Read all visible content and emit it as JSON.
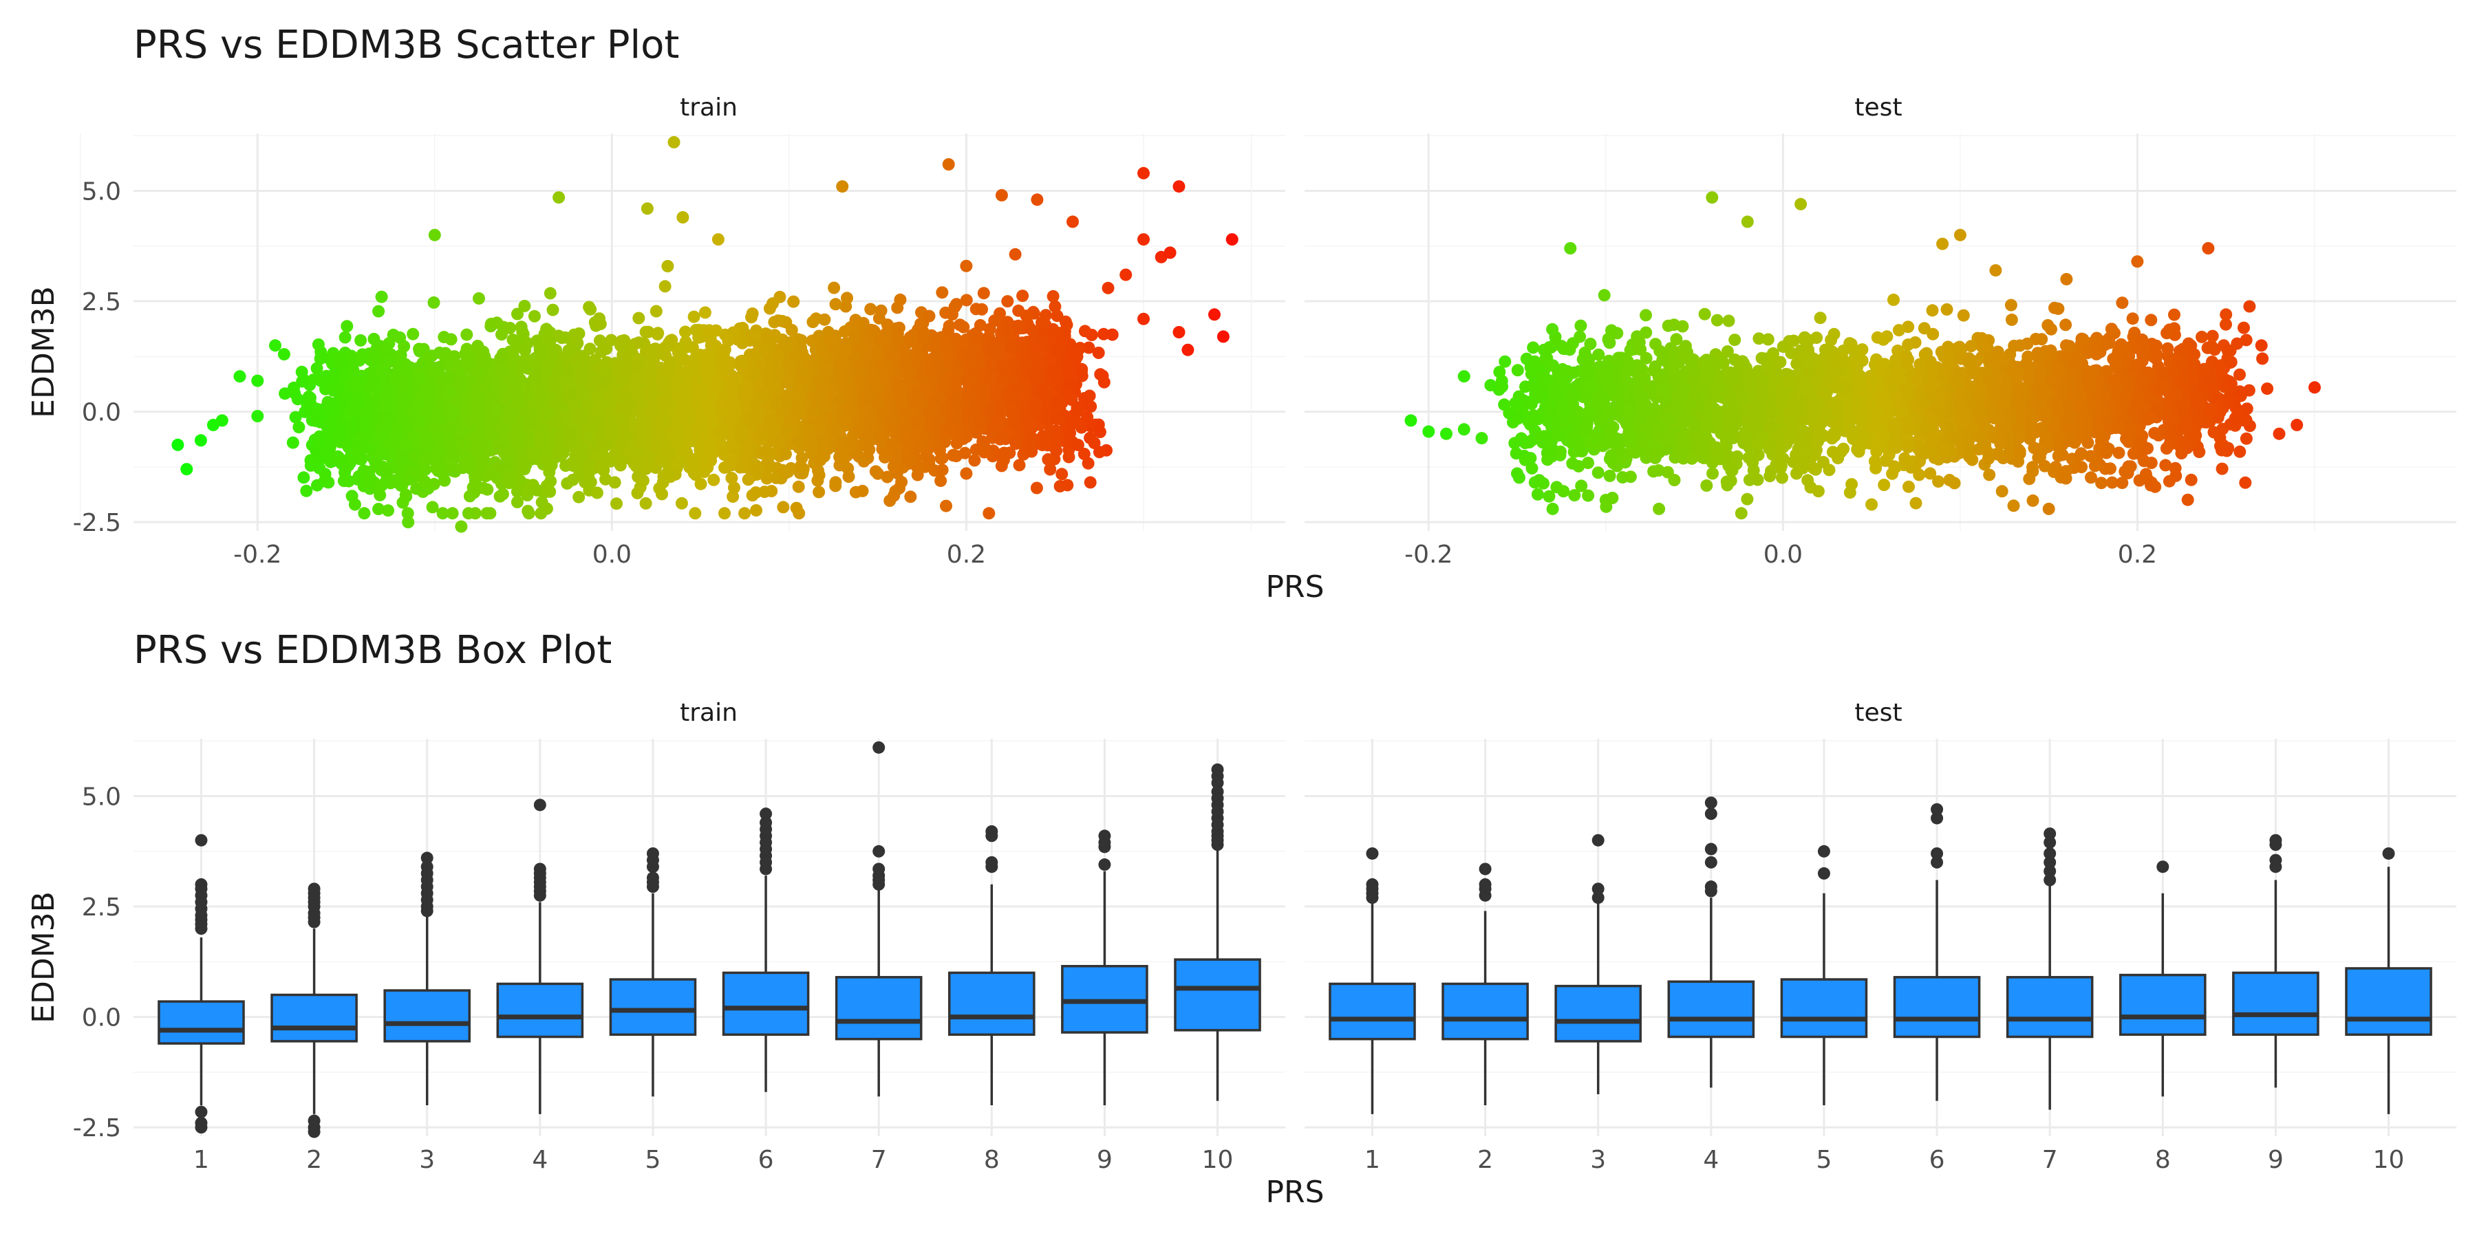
{
  "chart_data": [
    {
      "type": "scatter",
      "title": "PRS vs EDDM3B Scatter Plot",
      "xlabel": "PRS",
      "ylabel": "EDDM3B",
      "facets": [
        "train",
        "test"
      ],
      "xlim": [
        -0.27,
        0.38
      ],
      "ylim": [
        -2.7,
        6.3
      ],
      "x_ticks": [
        -0.2,
        0.0,
        0.2
      ],
      "x_tick_labels": [
        "-0.2",
        "0.0",
        "0.2"
      ],
      "y_ticks": [
        -2.5,
        0.0,
        2.5,
        5.0
      ],
      "y_tick_labels": [
        "-2.5",
        "0.0",
        "2.5",
        "5.0"
      ],
      "color_low": "#00ff00",
      "color_mid": "#c8b400",
      "color_high": "#ff0000",
      "grid": true,
      "series": [
        {
          "facet": "train",
          "x_range": [
            -0.25,
            0.35
          ],
          "bulk": {
            "x_range": [
              -0.16,
              0.26
            ],
            "y_mean_at_x0": 0.1,
            "y_slope": 1.8,
            "y_sd": 0.8
          },
          "outliers": [
            [
              -0.245,
              -0.75
            ],
            [
              -0.24,
              -1.3
            ],
            [
              -0.232,
              -0.65
            ],
            [
              -0.225,
              -0.3
            ],
            [
              -0.22,
              -0.2
            ],
            [
              -0.21,
              0.8
            ],
            [
              -0.2,
              0.7
            ],
            [
              -0.2,
              -0.1
            ],
            [
              -0.19,
              1.5
            ],
            [
              -0.185,
              1.3
            ],
            [
              -0.18,
              -0.7
            ],
            [
              -0.175,
              0.9
            ],
            [
              -0.17,
              -1.1
            ],
            [
              -0.16,
              -1.6
            ],
            [
              -0.145,
              -2.1
            ],
            [
              -0.13,
              2.6
            ],
            [
              -0.115,
              -2.5
            ],
            [
              -0.09,
              -2.3
            ],
            [
              -0.085,
              -2.6
            ],
            [
              -0.1,
              4.0
            ],
            [
              -0.03,
              4.85
            ],
            [
              -0.04,
              -2.3
            ],
            [
              0.02,
              4.6
            ],
            [
              0.035,
              6.1
            ],
            [
              0.04,
              4.4
            ],
            [
              0.06,
              3.9
            ],
            [
              0.13,
              5.1
            ],
            [
              0.16,
              -1.8
            ],
            [
              0.19,
              5.6
            ],
            [
              0.2,
              -1.4
            ],
            [
              0.2,
              3.3
            ],
            [
              0.22,
              4.9
            ],
            [
              0.24,
              4.8
            ],
            [
              0.26,
              4.3
            ],
            [
              0.27,
              -1.6
            ],
            [
              0.28,
              2.8
            ],
            [
              0.29,
              3.1
            ],
            [
              0.3,
              5.4
            ],
            [
              0.3,
              3.9
            ],
            [
              0.3,
              2.1
            ],
            [
              0.31,
              3.5
            ],
            [
              0.315,
              3.6
            ],
            [
              0.32,
              5.1
            ],
            [
              0.32,
              1.8
            ],
            [
              0.325,
              1.4
            ],
            [
              0.34,
              2.2
            ],
            [
              0.345,
              1.7
            ],
            [
              0.35,
              3.9
            ]
          ]
        },
        {
          "facet": "test",
          "x_range": [
            -0.21,
            0.3
          ],
          "bulk": {
            "x_range": [
              -0.14,
              0.25
            ],
            "y_mean_at_x0": 0.15,
            "y_slope": 0.5,
            "y_sd": 0.75
          },
          "outliers": [
            [
              -0.21,
              -0.2
            ],
            [
              -0.2,
              -0.45
            ],
            [
              -0.19,
              -0.5
            ],
            [
              -0.18,
              -0.4
            ],
            [
              -0.18,
              0.8
            ],
            [
              -0.17,
              -0.6
            ],
            [
              -0.165,
              0.6
            ],
            [
              -0.16,
              0.9
            ],
            [
              -0.15,
              -1.4
            ],
            [
              -0.14,
              -1.6
            ],
            [
              -0.13,
              -2.2
            ],
            [
              -0.12,
              3.7
            ],
            [
              -0.11,
              -1.9
            ],
            [
              -0.1,
              -2.0
            ],
            [
              -0.07,
              -2.2
            ],
            [
              -0.04,
              4.85
            ],
            [
              -0.02,
              4.3
            ],
            [
              0.01,
              4.7
            ],
            [
              0.02,
              -1.8
            ],
            [
              0.05,
              -2.1
            ],
            [
              0.09,
              3.8
            ],
            [
              0.1,
              4.0
            ],
            [
              0.12,
              3.2
            ],
            [
              0.15,
              -2.2
            ],
            [
              0.16,
              3.0
            ],
            [
              0.2,
              3.4
            ],
            [
              0.21,
              -1.7
            ],
            [
              0.24,
              3.7
            ],
            [
              0.25,
              2.2
            ],
            [
              0.26,
              1.9
            ],
            [
              0.27,
              1.5
            ],
            [
              0.28,
              -0.5
            ],
            [
              0.29,
              -0.3
            ],
            [
              0.3,
              0.55
            ]
          ]
        }
      ]
    },
    {
      "type": "box",
      "title": "PRS vs EDDM3B Box Plot",
      "xlabel": "PRS",
      "ylabel": "EDDM3B",
      "facets": [
        "train",
        "test"
      ],
      "categories": [
        "1",
        "2",
        "3",
        "4",
        "5",
        "6",
        "7",
        "8",
        "9",
        "10"
      ],
      "ylim": [
        -2.7,
        6.3
      ],
      "y_ticks": [
        -2.5,
        0.0,
        2.5,
        5.0
      ],
      "y_tick_labels": [
        "-2.5",
        "0.0",
        "2.5",
        "5.0"
      ],
      "box_fill": "#1e90ff",
      "box_stroke": "#333333",
      "grid": true,
      "series": [
        {
          "facet": "train",
          "boxes": [
            {
              "q1": -0.6,
              "median": -0.3,
              "q3": 0.35,
              "lower": -2.0,
              "upper": 1.8,
              "outliers": [
                -2.5,
                -2.4,
                -2.15,
                2.0,
                2.1,
                2.2,
                2.3,
                2.45,
                2.6,
                2.75,
                2.9,
                3.0,
                4.0
              ]
            },
            {
              "q1": -0.55,
              "median": -0.25,
              "q3": 0.5,
              "lower": -2.2,
              "upper": 2.0,
              "outliers": [
                -2.6,
                -2.5,
                -2.35,
                2.15,
                2.25,
                2.35,
                2.5,
                2.6,
                2.7,
                2.8,
                2.9
              ]
            },
            {
              "q1": -0.55,
              "median": -0.15,
              "q3": 0.6,
              "lower": -2.0,
              "upper": 2.3,
              "outliers": [
                2.4,
                2.5,
                2.65,
                2.8,
                2.95,
                3.1,
                3.25,
                3.4,
                3.6
              ]
            },
            {
              "q1": -0.45,
              "median": 0.0,
              "q3": 0.75,
              "lower": -2.2,
              "upper": 2.6,
              "outliers": [
                2.75,
                2.85,
                2.95,
                3.05,
                3.15,
                3.25,
                3.35,
                4.8
              ]
            },
            {
              "q1": -0.4,
              "median": 0.15,
              "q3": 0.85,
              "lower": -1.8,
              "upper": 2.8,
              "outliers": [
                2.95,
                3.05,
                3.15,
                3.4,
                3.55,
                3.7
              ]
            },
            {
              "q1": -0.4,
              "median": 0.2,
              "q3": 1.0,
              "lower": -1.7,
              "upper": 3.2,
              "outliers": [
                3.35,
                3.5,
                3.65,
                3.8,
                3.95,
                4.1,
                4.25,
                4.4,
                4.6
              ]
            },
            {
              "q1": -0.5,
              "median": -0.1,
              "q3": 0.9,
              "lower": -1.8,
              "upper": 2.9,
              "outliers": [
                3.0,
                3.1,
                3.2,
                3.35,
                3.75,
                6.1
              ]
            },
            {
              "q1": -0.4,
              "median": 0.0,
              "q3": 1.0,
              "lower": -2.0,
              "upper": 3.0,
              "outliers": [
                3.4,
                3.5,
                4.1,
                4.2
              ]
            },
            {
              "q1": -0.35,
              "median": 0.35,
              "q3": 1.15,
              "lower": -2.0,
              "upper": 3.3,
              "outliers": [
                3.45,
                3.85,
                3.95,
                4.1
              ]
            },
            {
              "q1": -0.3,
              "median": 0.65,
              "q3": 1.3,
              "lower": -1.9,
              "upper": 3.8,
              "outliers": [
                3.9,
                4.0,
                4.1,
                4.2,
                4.35,
                4.5,
                4.65,
                4.8,
                4.95,
                5.1,
                5.3,
                5.45,
                5.6
              ]
            }
          ]
        },
        {
          "facet": "test",
          "boxes": [
            {
              "q1": -0.5,
              "median": -0.05,
              "q3": 0.75,
              "lower": -2.2,
              "upper": 2.6,
              "outliers": [
                2.7,
                2.8,
                2.9,
                3.0,
                3.7
              ]
            },
            {
              "q1": -0.5,
              "median": -0.05,
              "q3": 0.75,
              "lower": -2.0,
              "upper": 2.4,
              "outliers": [
                2.75,
                2.9,
                3.0,
                3.35
              ]
            },
            {
              "q1": -0.55,
              "median": -0.1,
              "q3": 0.7,
              "lower": -1.75,
              "upper": 2.6,
              "outliers": [
                2.7,
                2.9,
                4.0
              ]
            },
            {
              "q1": -0.45,
              "median": -0.05,
              "q3": 0.8,
              "lower": -1.6,
              "upper": 2.7,
              "outliers": [
                2.85,
                2.95,
                3.5,
                3.8,
                4.6,
                4.85
              ]
            },
            {
              "q1": -0.45,
              "median": -0.05,
              "q3": 0.85,
              "lower": -2.0,
              "upper": 2.8,
              "outliers": [
                3.25,
                3.75
              ]
            },
            {
              "q1": -0.45,
              "median": -0.05,
              "q3": 0.9,
              "lower": -1.9,
              "upper": 3.1,
              "outliers": [
                3.5,
                3.7,
                4.5,
                4.7
              ]
            },
            {
              "q1": -0.45,
              "median": -0.05,
              "q3": 0.9,
              "lower": -2.1,
              "upper": 3.0,
              "outliers": [
                3.1,
                3.3,
                3.5,
                3.7,
                3.95,
                4.15
              ]
            },
            {
              "q1": -0.4,
              "median": 0.0,
              "q3": 0.95,
              "lower": -1.8,
              "upper": 2.8,
              "outliers": [
                3.4
              ]
            },
            {
              "q1": -0.4,
              "median": 0.05,
              "q3": 1.0,
              "lower": -1.6,
              "upper": 3.1,
              "outliers": [
                3.4,
                3.55,
                3.9,
                4.0
              ]
            },
            {
              "q1": -0.4,
              "median": -0.05,
              "q3": 1.1,
              "lower": -2.2,
              "upper": 3.4,
              "outliers": [
                3.7
              ]
            }
          ]
        }
      ]
    }
  ]
}
